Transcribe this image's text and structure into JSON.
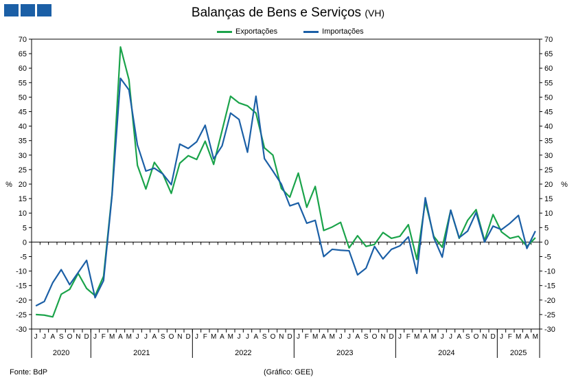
{
  "header": {
    "title": "Balanças de Bens e Serviços",
    "title_unit": "(VH)",
    "logo_color": "#1b5fa6"
  },
  "footer": {
    "source": "Fonte: BdP",
    "credit": "(Gráfico: GEE)"
  },
  "chart_data": {
    "type": "line",
    "title": "Balanças de Bens e Serviços (VH)",
    "ylabel": "%",
    "ylim": [
      -30,
      70
    ],
    "yticks": [
      -30,
      -25,
      -20,
      -15,
      -10,
      -5,
      0,
      5,
      10,
      15,
      20,
      25,
      30,
      35,
      40,
      45,
      50,
      55,
      60,
      65,
      70
    ],
    "grid": false,
    "legend_position": "top",
    "month_labels": [
      "J",
      "J",
      "A",
      "S",
      "O",
      "N",
      "D",
      "J",
      "F",
      "M",
      "A",
      "M",
      "J",
      "J",
      "A",
      "S",
      "O",
      "N",
      "D",
      "J",
      "F",
      "M",
      "A",
      "M",
      "J",
      "J",
      "A",
      "S",
      "O",
      "N",
      "D",
      "J",
      "F",
      "M",
      "A",
      "M",
      "J",
      "J",
      "A",
      "S",
      "O",
      "N",
      "D",
      "J",
      "F",
      "M",
      "A",
      "M",
      "J",
      "J",
      "A",
      "S",
      "O",
      "N",
      "D",
      "J",
      "F",
      "M",
      "A",
      "M"
    ],
    "years": [
      {
        "label": "2020",
        "start": 0,
        "end": 6
      },
      {
        "label": "2021",
        "start": 7,
        "end": 18
      },
      {
        "label": "2022",
        "start": 19,
        "end": 30
      },
      {
        "label": "2023",
        "start": 31,
        "end": 42
      },
      {
        "label": "2024",
        "start": 43,
        "end": 54
      },
      {
        "label": "2025",
        "start": 55,
        "end": 59
      }
    ],
    "x": [
      "2020-06",
      "2020-07",
      "2020-08",
      "2020-09",
      "2020-10",
      "2020-11",
      "2020-12",
      "2021-01",
      "2021-02",
      "2021-03",
      "2021-04",
      "2021-05",
      "2021-06",
      "2021-07",
      "2021-08",
      "2021-09",
      "2021-10",
      "2021-11",
      "2021-12",
      "2022-01",
      "2022-02",
      "2022-03",
      "2022-04",
      "2022-05",
      "2022-06",
      "2022-07",
      "2022-08",
      "2022-09",
      "2022-10",
      "2022-11",
      "2022-12",
      "2023-01",
      "2023-02",
      "2023-03",
      "2023-04",
      "2023-05",
      "2023-06",
      "2023-07",
      "2023-08",
      "2023-09",
      "2023-10",
      "2023-11",
      "2023-12",
      "2024-01",
      "2024-02",
      "2024-03",
      "2024-04",
      "2024-05",
      "2024-06",
      "2024-07",
      "2024-08",
      "2024-09",
      "2024-10",
      "2024-11",
      "2024-12",
      "2025-01",
      "2025-02",
      "2025-03",
      "2025-04",
      "2025-05"
    ],
    "series": [
      {
        "name": "Exportações",
        "color": "#1aa34a",
        "values": [
          -25,
          -25.2,
          -25.8,
          -18,
          -16.3,
          -10.8,
          -16,
          -18.5,
          -11.8,
          16.5,
          67.3,
          56,
          26.5,
          18.3,
          27.5,
          23.5,
          16.8,
          27.2,
          29.8,
          28.5,
          34.8,
          26.8,
          38.5,
          50.3,
          48,
          47,
          44.5,
          32.5,
          30,
          18.5,
          15.5,
          23.8,
          12,
          19.2,
          4,
          5.2,
          6.8,
          -2,
          2.2,
          -1.5,
          -0.8,
          3.3,
          1.3,
          2,
          6,
          -6,
          14,
          2,
          -1.8,
          11,
          1.3,
          7.5,
          11.2,
          0.5,
          9.5,
          3.5,
          1.3,
          2,
          -1.5,
          1.5
        ]
      },
      {
        "name": "Importações",
        "color": "#1b5fa6",
        "values": [
          -22,
          -20.5,
          -14,
          -9.5,
          -14.7,
          -10.5,
          -6.3,
          -19.2,
          -13.3,
          16,
          56.5,
          52.5,
          33.5,
          24.5,
          25.5,
          23.5,
          19.8,
          33.8,
          32.3,
          34.6,
          40.3,
          28.7,
          33.2,
          44.5,
          42.3,
          31,
          50.3,
          28.8,
          24.5,
          20,
          12.5,
          13.5,
          6.5,
          7.5,
          -5,
          -2.5,
          -2.8,
          -3,
          -11.3,
          -9,
          -1.5,
          -5.8,
          -2.5,
          -1.3,
          1.8,
          -10.8,
          15.3,
          1.5,
          -5.2,
          11,
          1.5,
          3.8,
          10.2,
          0,
          5.5,
          4.3,
          6.5,
          9.2,
          -2.2,
          3.8
        ]
      }
    ]
  }
}
